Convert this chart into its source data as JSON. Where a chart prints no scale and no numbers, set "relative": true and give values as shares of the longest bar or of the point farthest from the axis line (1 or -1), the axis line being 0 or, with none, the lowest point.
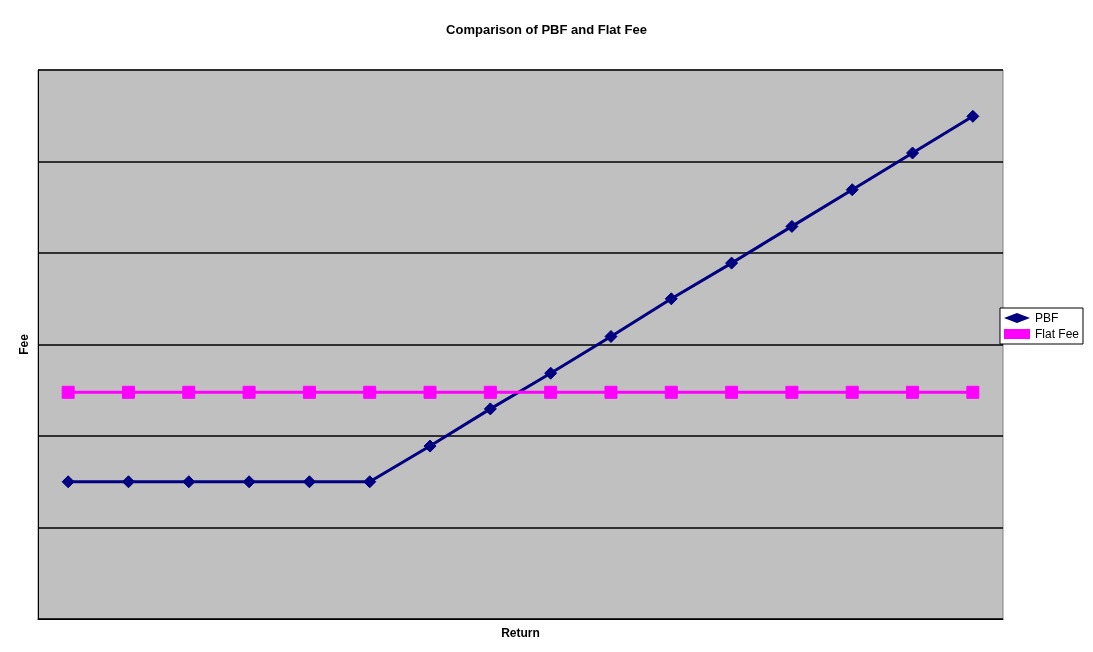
{
  "chart_data": {
    "type": "line",
    "title": "Comparison of PBF and Flat Fee",
    "xlabel": "Return",
    "ylabel": "Fee",
    "relative": true,
    "grid": "y",
    "legend": "right",
    "line_style": "solid",
    "categories": [
      null,
      null,
      null,
      null,
      null,
      null,
      null,
      null,
      null,
      null,
      null,
      null,
      null,
      null,
      null,
      null
    ],
    "series": [
      {
        "name": "PBF",
        "color": "#000080",
        "marker": "diamond",
        "values": [
          0.273,
          0.273,
          0.273,
          0.273,
          0.273,
          0.273,
          0.344,
          0.418,
          0.489,
          0.562,
          0.637,
          0.708,
          0.781,
          0.854,
          0.927,
          1
        ]
      },
      {
        "name": "Flat Fee",
        "color": "#ff00ff",
        "marker": "square",
        "values": [
          0.451,
          0.451,
          0.451,
          0.451,
          0.451,
          0.451,
          0.451,
          0.451,
          0.451,
          0.451,
          0.451,
          0.451,
          0.451,
          0.451,
          0.451,
          0.451
        ]
      }
    ]
  }
}
